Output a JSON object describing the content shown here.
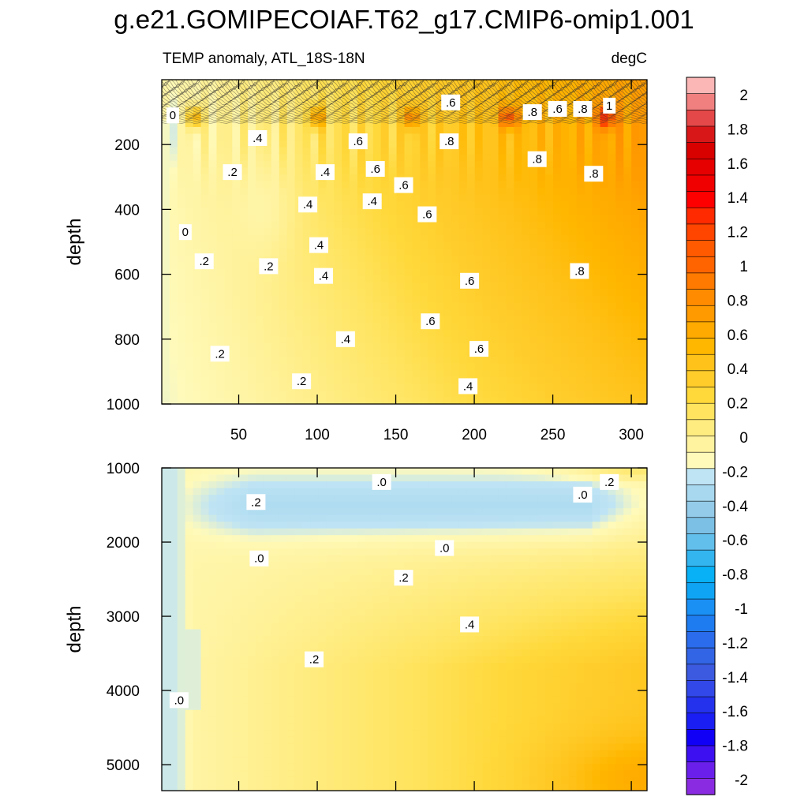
{
  "title": "g.e21.GOMIPECOIAF.T62_g17.CMIP6-omip1.001",
  "subtitle_left": "TEMP anomaly, ATL_18S-18N",
  "subtitle_right": "degC",
  "chart_data": {
    "type": "heatmap",
    "panels": [
      {
        "name": "upper",
        "ylabel": "depth",
        "ylim": [
          1000,
          0
        ],
        "yticks": [
          200,
          400,
          600,
          800,
          1000
        ],
        "xlim": [
          1,
          310
        ],
        "xticks": [
          50,
          100,
          150,
          200,
          250,
          300
        ],
        "show_xtick_labels": true,
        "contour_labels": [
          {
            "text": "0",
            "x": 8,
            "y": 110
          },
          {
            "text": "0",
            "x": 16,
            "y": 470
          },
          {
            "text": ".2",
            "x": 46,
            "y": 285
          },
          {
            "text": ".2",
            "x": 28,
            "y": 560
          },
          {
            "text": ".2",
            "x": 69,
            "y": 575
          },
          {
            "text": ".2",
            "x": 38,
            "y": 845
          },
          {
            "text": ".2",
            "x": 90,
            "y": 930
          },
          {
            "text": ".4",
            "x": 62,
            "y": 180
          },
          {
            "text": ".4",
            "x": 105,
            "y": 285
          },
          {
            "text": ".4",
            "x": 94,
            "y": 385
          },
          {
            "text": ".4",
            "x": 101,
            "y": 510
          },
          {
            "text": ".4",
            "x": 104,
            "y": 605
          },
          {
            "text": ".4",
            "x": 118,
            "y": 800
          },
          {
            "text": ".4",
            "x": 135,
            "y": 375
          },
          {
            "text": ".4",
            "x": 196,
            "y": 945
          },
          {
            "text": ".6",
            "x": 126,
            "y": 190
          },
          {
            "text": ".6",
            "x": 137,
            "y": 275
          },
          {
            "text": ".6",
            "x": 155,
            "y": 325
          },
          {
            "text": ".6",
            "x": 170,
            "y": 415
          },
          {
            "text": ".6",
            "x": 185,
            "y": 70
          },
          {
            "text": ".6",
            "x": 172,
            "y": 745
          },
          {
            "text": ".6",
            "x": 197,
            "y": 620
          },
          {
            "text": ".6",
            "x": 203,
            "y": 830
          },
          {
            "text": ".6",
            "x": 253,
            "y": 90
          },
          {
            "text": ".8",
            "x": 184,
            "y": 190
          },
          {
            "text": ".8",
            "x": 237,
            "y": 100
          },
          {
            "text": ".8",
            "x": 240,
            "y": 245
          },
          {
            "text": ".8",
            "x": 269,
            "y": 90
          },
          {
            "text": ".8",
            "x": 276,
            "y": 290
          },
          {
            "text": ".8",
            "x": 267,
            "y": 590
          },
          {
            "text": "1",
            "x": 286,
            "y": 80
          }
        ]
      },
      {
        "name": "lower",
        "ylabel": "depth",
        "ylim": [
          5350,
          1000
        ],
        "yticks": [
          1000,
          2000,
          3000,
          4000,
          5000
        ],
        "xlim": [
          1,
          310
        ],
        "xticks": [
          50,
          100,
          150,
          200,
          250,
          300
        ],
        "show_xtick_labels": false,
        "contour_labels": [
          {
            "text": ".0",
            "x": 141,
            "y": 1190
          },
          {
            "text": ".2",
            "x": 61,
            "y": 1460
          },
          {
            "text": ".0",
            "x": 269,
            "y": 1360
          },
          {
            "text": ".2",
            "x": 286,
            "y": 1190
          },
          {
            "text": ".0",
            "x": 63,
            "y": 2220
          },
          {
            "text": ".0",
            "x": 181,
            "y": 2080
          },
          {
            "text": ".2",
            "x": 155,
            "y": 2480
          },
          {
            "text": ".4",
            "x": 197,
            "y": 3110
          },
          {
            "text": ".2",
            "x": 98,
            "y": 3580
          },
          {
            "text": ".0",
            "x": 12,
            "y": 4130
          }
        ]
      }
    ],
    "colorbar": {
      "labels": [
        "2",
        "1.8",
        "1.6",
        "1.4",
        "1.2",
        "1",
        "0.8",
        "0.6",
        "0.4",
        "0.2",
        "0",
        "-0.2",
        "-0.4",
        "-0.6",
        "-0.8",
        "-1",
        "-1.2",
        "-1.4",
        "-1.6",
        "-1.8",
        "-2"
      ],
      "colors_top_to_bottom": [
        "#fbb6b6",
        "#f08080",
        "#e54848",
        "#d81818",
        "#d90000",
        "#e60000",
        "#f00000",
        "#ff0000",
        "#ff2a00",
        "#ff4500",
        "#ff5a00",
        "#ff6400",
        "#ff7a00",
        "#ff8c00",
        "#ff9a00",
        "#ffaa00",
        "#ffb700",
        "#ffc21a",
        "#ffcc2a",
        "#ffd83a",
        "#ffe460",
        "#ffec80",
        "#fff3a0",
        "#fffaba",
        "#bfe4f4",
        "#a8d8ef",
        "#93cbe8",
        "#7cc0e6",
        "#62bfec",
        "#33b5f0",
        "#08b0f5",
        "#10a4f5",
        "#1a90f5",
        "#1e7cf0",
        "#2a6ceb",
        "#3264e6",
        "#3b5ae0",
        "#3248e8",
        "#2432ee",
        "#1a1ef2",
        "#1000f5",
        "#3c10f0",
        "#6a20ea",
        "#8a2be2"
      ]
    }
  }
}
